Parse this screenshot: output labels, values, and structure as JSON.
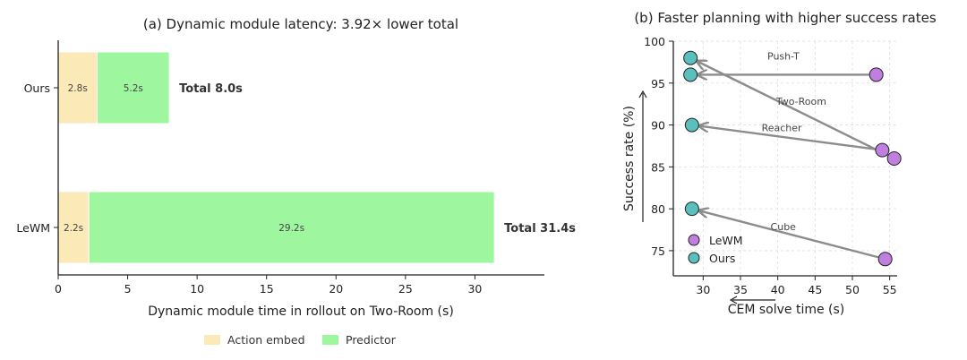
{
  "chart_data": [
    {
      "type": "bar",
      "orientation": "horizontal",
      "stacked": true,
      "title": "(a) Dynamic module latency: 3.92× lower total",
      "xlabel": "Dynamic module time in rollout on Two-Room (s)",
      "ylabel": "",
      "xlim": [
        0,
        35
      ],
      "xticks": [
        "0",
        "5",
        "10",
        "15",
        "20",
        "25",
        "30"
      ],
      "categories": [
        "Ours",
        "LeWM"
      ],
      "series": [
        {
          "name": "Action embed",
          "values": [
            2.8,
            2.2
          ],
          "color": "#fbe9b7",
          "labels": [
            "2.8s",
            "2.2s"
          ]
        },
        {
          "name": "Predictor",
          "values": [
            5.2,
            29.2
          ],
          "color": "#9ef79e",
          "labels": [
            "5.2s",
            "29.2s"
          ]
        }
      ],
      "totals": [
        8.0,
        31.4
      ],
      "total_labels": [
        "Total 8.0s",
        "Total 31.4s"
      ],
      "legend": "bottom-center",
      "grid": false
    },
    {
      "type": "scatter",
      "title": "(b) Faster planning with higher success rates",
      "xlabel": "CEM solve time (s)",
      "ylabel": "Success rate (%)",
      "xlim": [
        26,
        56
      ],
      "ylim": [
        72,
        100
      ],
      "xticks": [
        "30",
        "35",
        "40",
        "45",
        "50",
        "55"
      ],
      "yticks": [
        "75",
        "80",
        "85",
        "90",
        "95",
        "100"
      ],
      "grid": true,
      "legend": "bottom-left",
      "series": [
        {
          "name": "LeWM",
          "color": "#c07fe0",
          "points": [
            {
              "x": 53.2,
              "y": 96
            },
            {
              "x": 54.0,
              "y": 87
            },
            {
              "x": 55.6,
              "y": 86
            },
            {
              "x": 54.4,
              "y": 74
            }
          ]
        },
        {
          "name": "Ours",
          "color": "#5bbfbd",
          "points": [
            {
              "x": 28.3,
              "y": 98
            },
            {
              "x": 28.3,
              "y": 96
            },
            {
              "x": 28.5,
              "y": 90
            },
            {
              "x": 28.5,
              "y": 80
            }
          ]
        }
      ],
      "arrows": [
        {
          "label": "Push-T",
          "from": [
            53.2,
            96
          ],
          "to": [
            28.3,
            96
          ]
        },
        {
          "label": "Two-Room",
          "from": [
            55.6,
            86
          ],
          "to": [
            28.3,
            98
          ]
        },
        {
          "label": "Reacher",
          "from": [
            54.0,
            87
          ],
          "to": [
            28.5,
            90
          ]
        },
        {
          "label": "Cube",
          "from": [
            54.4,
            74
          ],
          "to": [
            28.5,
            80
          ]
        }
      ]
    }
  ]
}
